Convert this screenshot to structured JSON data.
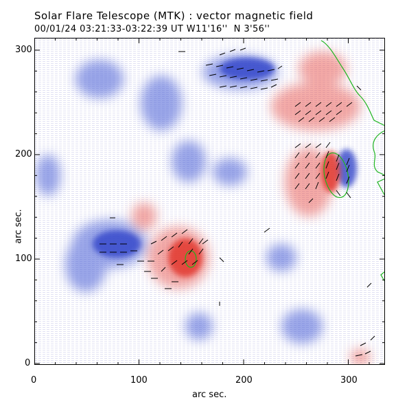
{
  "title": "Solar Flare Telescope (MTK) : vector magnetic field",
  "subtitle": {
    "date": "00/01/24",
    "time_range": "03:21:33-03:22:39 UT",
    "position": "W11'16''  N 3'56''"
  },
  "axes": {
    "xlabel": "arc sec.",
    "ylabel": "arc sec.",
    "xlim": [
      0,
      335
    ],
    "ylim": [
      0,
      315
    ],
    "xticks": [
      "0",
      "100",
      "200",
      "300"
    ],
    "yticks": [
      "0",
      "100",
      "200",
      "300"
    ]
  },
  "colors": {
    "positive_polarity": "#e8574f",
    "negative_polarity": "#4a5fd6",
    "contour": "#1fb51f",
    "vector": "#000000"
  }
}
